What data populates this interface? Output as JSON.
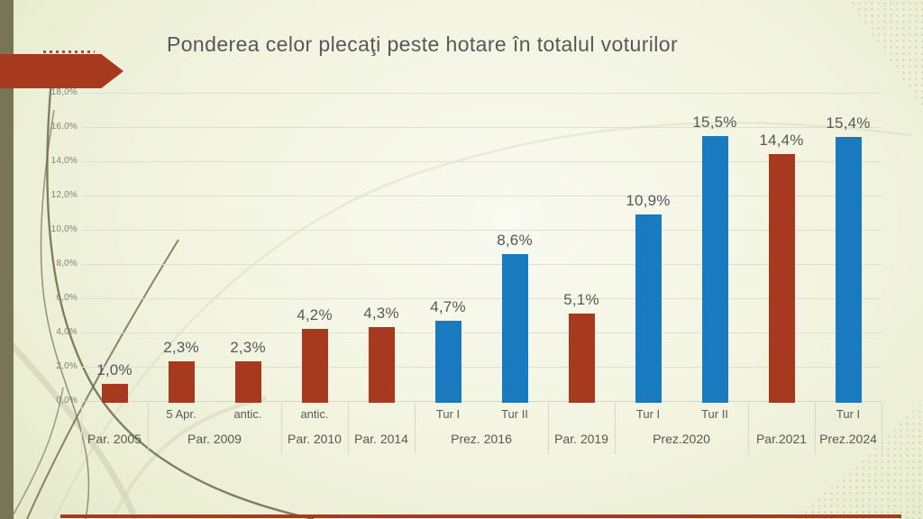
{
  "slide": {
    "title": "Ponderea celor plecaţi peste hotare în totalul voturilor"
  },
  "theme": {
    "accent_red": "#A6391E",
    "accent_blue": "#1A7ABF",
    "band_olive": "#7A7456",
    "title_gray": "#575757",
    "grid_color": "#DEE1D0"
  },
  "chart_data": {
    "type": "bar",
    "title": "Ponderea celor plecaţi peste hotare în totalul voturilor",
    "xlabel": "",
    "ylabel": "",
    "ylim": [
      0,
      18
    ],
    "ytick_step": 2,
    "ytick_labels": [
      "0,0%",
      "2,0%",
      "4,0%",
      "6,0%",
      "8,0%",
      "10,0%",
      "12,0%",
      "14,0%",
      "16,0%",
      "18,0%"
    ],
    "grid": true,
    "legend": false,
    "groups": [
      {
        "label": "Par. 2005",
        "bars": [
          {
            "sub": "",
            "value": 1.0,
            "label": "1,0%",
            "color": "red"
          }
        ]
      },
      {
        "label": "Par. 2009",
        "bars": [
          {
            "sub": "5 Apr.",
            "value": 2.3,
            "label": "2,3%",
            "color": "red"
          },
          {
            "sub": "antic.",
            "value": 2.3,
            "label": "2,3%",
            "color": "red"
          }
        ]
      },
      {
        "label": "Par. 2010",
        "bars": [
          {
            "sub": "antic.",
            "value": 4.2,
            "label": "4,2%",
            "color": "red"
          }
        ]
      },
      {
        "label": "Par. 2014",
        "bars": [
          {
            "sub": "",
            "value": 4.3,
            "label": "4,3%",
            "color": "red"
          }
        ]
      },
      {
        "label": "Prez. 2016",
        "bars": [
          {
            "sub": "Tur I",
            "value": 4.7,
            "label": "4,7%",
            "color": "blue"
          },
          {
            "sub": "Tur II",
            "value": 8.6,
            "label": "8,6%",
            "color": "blue"
          }
        ]
      },
      {
        "label": "Par. 2019",
        "bars": [
          {
            "sub": "",
            "value": 5.1,
            "label": "5,1%",
            "color": "red"
          }
        ]
      },
      {
        "label": "Prez.2020",
        "bars": [
          {
            "sub": "Tur I",
            "value": 10.9,
            "label": "10,9%",
            "color": "blue"
          },
          {
            "sub": "Tur II",
            "value": 15.5,
            "label": "15,5%",
            "color": "blue"
          }
        ]
      },
      {
        "label": "Par.2021",
        "bars": [
          {
            "sub": "",
            "value": 14.4,
            "label": "14,4%",
            "color": "red"
          }
        ]
      },
      {
        "label": "Prez.2024",
        "bars": [
          {
            "sub": "Tur I",
            "value": 15.4,
            "label": "15,4%",
            "color": "blue"
          }
        ]
      }
    ]
  }
}
